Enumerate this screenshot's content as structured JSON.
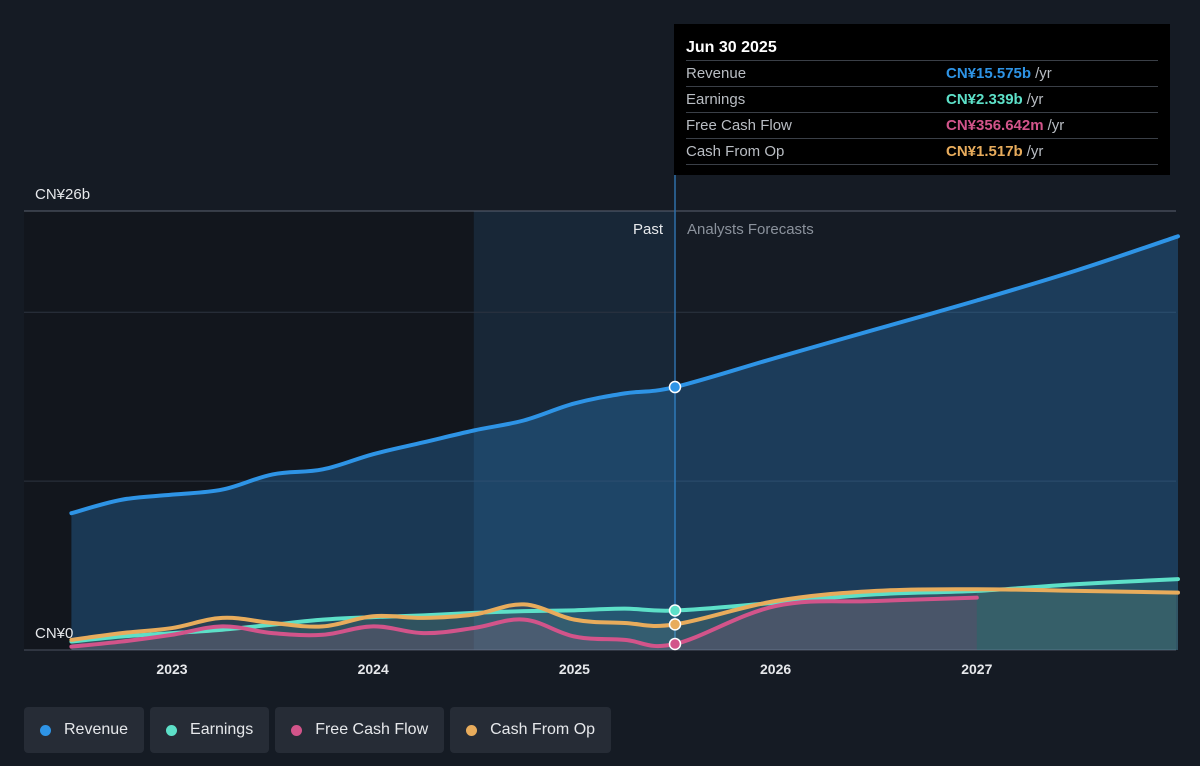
{
  "chart_data": {
    "type": "area",
    "currency_axis": {
      "top_label": "CN¥26b",
      "bottom_label": "CN¥0",
      "ylim": [
        0,
        26
      ]
    },
    "x_ticks": [
      "2023",
      "2024",
      "2025",
      "2026",
      "2027"
    ],
    "x_range": [
      2022.5,
      2028.0
    ],
    "past_label": "Past",
    "forecast_label": "Analysts Forecasts",
    "divider_x": 2025.5,
    "highlight_start_x": 2024.5,
    "series": [
      {
        "name": "Revenue",
        "color": "#2e94e6",
        "points": [
          [
            2022.5,
            8.1
          ],
          [
            2022.75,
            8.9
          ],
          [
            2023.0,
            9.2
          ],
          [
            2023.25,
            9.5
          ],
          [
            2023.5,
            10.4
          ],
          [
            2023.75,
            10.7
          ],
          [
            2024.0,
            11.6
          ],
          [
            2024.25,
            12.3
          ],
          [
            2024.5,
            13.0
          ],
          [
            2024.75,
            13.6
          ],
          [
            2025.0,
            14.6
          ],
          [
            2025.25,
            15.2
          ],
          [
            2025.5,
            15.575
          ],
          [
            2026.0,
            17.3
          ],
          [
            2026.5,
            19.0
          ],
          [
            2027.0,
            20.7
          ],
          [
            2027.5,
            22.5
          ],
          [
            2028.0,
            24.5
          ]
        ]
      },
      {
        "name": "Earnings",
        "color": "#5de0c8",
        "points": [
          [
            2022.5,
            0.5
          ],
          [
            2022.75,
            0.8
          ],
          [
            2023.0,
            1.0
          ],
          [
            2023.25,
            1.2
          ],
          [
            2023.5,
            1.5
          ],
          [
            2023.75,
            1.8
          ],
          [
            2024.0,
            1.95
          ],
          [
            2024.25,
            2.05
          ],
          [
            2024.5,
            2.2
          ],
          [
            2024.75,
            2.3
          ],
          [
            2025.0,
            2.35
          ],
          [
            2025.25,
            2.45
          ],
          [
            2025.5,
            2.339
          ],
          [
            2026.0,
            2.8
          ],
          [
            2026.5,
            3.3
          ],
          [
            2027.0,
            3.5
          ],
          [
            2027.5,
            3.9
          ],
          [
            2028.0,
            4.2
          ]
        ]
      },
      {
        "name": "Free Cash Flow",
        "color": "#d2548a",
        "points": [
          [
            2022.5,
            0.2
          ],
          [
            2022.75,
            0.5
          ],
          [
            2023.0,
            0.9
          ],
          [
            2023.25,
            1.4
          ],
          [
            2023.5,
            1.0
          ],
          [
            2023.75,
            0.9
          ],
          [
            2024.0,
            1.4
          ],
          [
            2024.25,
            1.0
          ],
          [
            2024.5,
            1.3
          ],
          [
            2024.75,
            1.8
          ],
          [
            2025.0,
            0.8
          ],
          [
            2025.25,
            0.6
          ],
          [
            2025.5,
            0.357
          ],
          [
            2026.0,
            2.6
          ],
          [
            2026.5,
            2.9
          ],
          [
            2027.0,
            3.1
          ]
        ]
      },
      {
        "name": "Cash From Op",
        "color": "#e8ac5c",
        "points": [
          [
            2022.5,
            0.6
          ],
          [
            2022.75,
            1.0
          ],
          [
            2023.0,
            1.3
          ],
          [
            2023.25,
            1.9
          ],
          [
            2023.5,
            1.6
          ],
          [
            2023.75,
            1.4
          ],
          [
            2024.0,
            2.0
          ],
          [
            2024.25,
            1.9
          ],
          [
            2024.5,
            2.1
          ],
          [
            2024.75,
            2.7
          ],
          [
            2025.0,
            1.8
          ],
          [
            2025.25,
            1.6
          ],
          [
            2025.5,
            1.517
          ],
          [
            2026.0,
            2.9
          ],
          [
            2026.5,
            3.5
          ],
          [
            2027.0,
            3.6
          ],
          [
            2027.5,
            3.5
          ],
          [
            2028.0,
            3.4
          ]
        ]
      }
    ],
    "tooltip": {
      "date": "Jun 30 2025",
      "rows": [
        {
          "label": "Revenue",
          "value": "CN¥15.575b",
          "unit": "/yr",
          "color": "#2e94e6"
        },
        {
          "label": "Earnings",
          "value": "CN¥2.339b",
          "unit": "/yr",
          "color": "#5de0c8"
        },
        {
          "label": "Free Cash Flow",
          "value": "CN¥356.642m",
          "unit": "/yr",
          "color": "#d2548a"
        },
        {
          "label": "Cash From Op",
          "value": "CN¥1.517b",
          "unit": "/yr",
          "color": "#e8ac5c"
        }
      ]
    },
    "legend": [
      {
        "label": "Revenue",
        "color": "#2e94e6"
      },
      {
        "label": "Earnings",
        "color": "#5de0c8"
      },
      {
        "label": "Free Cash Flow",
        "color": "#d2548a"
      },
      {
        "label": "Cash From Op",
        "color": "#e8ac5c"
      }
    ]
  }
}
